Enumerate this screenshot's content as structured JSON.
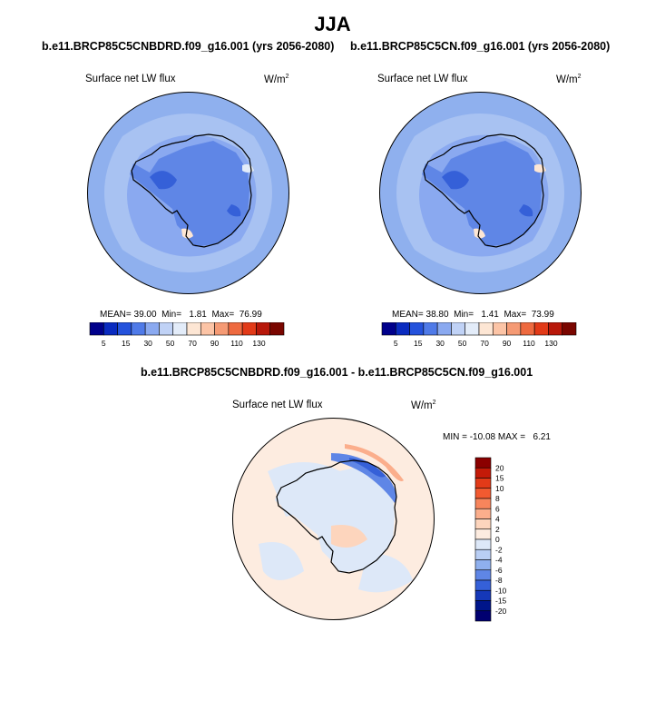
{
  "main_title": "JJA",
  "panels": [
    {
      "case": "b.e11.BRCP85C5CNBDRD.f09_g16.001 (yrs 2056-2080)",
      "variable": "Surface net LW flux",
      "units": "W/m",
      "units_exp": "2",
      "stats": {
        "mean_label": "MEAN=",
        "mean": "39.00",
        "min_label": "Min=",
        "min": "1.81",
        "max_label": "Max=",
        "max": "76.99"
      }
    },
    {
      "case": "b.e11.BRCP85C5CN.f09_g16.001 (yrs 2056-2080)",
      "variable": "Surface net LW flux",
      "units": "W/m",
      "units_exp": "2",
      "stats": {
        "mean_label": "MEAN=",
        "mean": "38.80",
        "min_label": "Min=",
        "min": "1.41",
        "max_label": "Max=",
        "max": "73.99"
      }
    }
  ],
  "diff_panel": {
    "title": "b.e11.BRCP85C5CNBDRD.f09_g16.001 - b.e11.BRCP85C5CN.f09_g16.001",
    "variable": "Surface net LW flux",
    "units": "W/m",
    "units_exp": "2",
    "minmax_label": "MIN = -10.08 MAX =   6.21"
  },
  "chart_data": [
    {
      "type": "heatmap",
      "projection": "south-polar-stereographic",
      "title": "b.e11.BRCP85C5CNBDRD.f09_g16.001 (yrs 2056-2080)",
      "variable": "Surface net LW flux",
      "units": "W/m2",
      "stats": {
        "mean": 39.0,
        "min": 1.81,
        "max": 76.99
      },
      "colorbar": {
        "levels": [
          5,
          15,
          30,
          50,
          70,
          90,
          110,
          130
        ],
        "tick_labels": [
          "5",
          "15",
          "30",
          "50",
          "70",
          "90",
          "110",
          "130"
        ],
        "colors": [
          "#00008b",
          "#0a2bc0",
          "#2452dc",
          "#4f7ae8",
          "#8aa9f0",
          "#c0d2f6",
          "#e3ecf9",
          "#fde6d4",
          "#fcc4a6",
          "#f59a74",
          "#ee6a40",
          "#e23a18",
          "#b8180a",
          "#7a0600"
        ]
      }
    },
    {
      "type": "heatmap",
      "projection": "south-polar-stereographic",
      "title": "b.e11.BRCP85C5CN.f09_g16.001 (yrs 2056-2080)",
      "variable": "Surface net LW flux",
      "units": "W/m2",
      "stats": {
        "mean": 38.8,
        "min": 1.41,
        "max": 73.99
      },
      "colorbar": {
        "levels": [
          5,
          15,
          30,
          50,
          70,
          90,
          110,
          130
        ],
        "tick_labels": [
          "5",
          "15",
          "30",
          "50",
          "70",
          "90",
          "110",
          "130"
        ],
        "colors": [
          "#00008b",
          "#0a2bc0",
          "#2452dc",
          "#4f7ae8",
          "#8aa9f0",
          "#c0d2f6",
          "#e3ecf9",
          "#fde6d4",
          "#fcc4a6",
          "#f59a74",
          "#ee6a40",
          "#e23a18",
          "#b8180a",
          "#7a0600"
        ]
      }
    },
    {
      "type": "heatmap",
      "projection": "south-polar-stereographic",
      "title": "b.e11.BRCP85C5CNBDRD.f09_g16.001 - b.e11.BRCP85C5CN.f09_g16.001",
      "variable": "Surface net LW flux",
      "units": "W/m2",
      "stats": {
        "min": -10.08,
        "max": 6.21
      },
      "colorbar": {
        "orientation": "vertical",
        "tick_labels": [
          "20",
          "15",
          "10",
          "8",
          "6",
          "4",
          "2",
          "0",
          "-2",
          "-4",
          "-6",
          "-8",
          "-10",
          "-15",
          "-20"
        ],
        "colors": [
          "#8b0000",
          "#c41a08",
          "#e23a18",
          "#f25a30",
          "#f7855c",
          "#fbae8c",
          "#fdd5bd",
          "#fdece0",
          "#dde8f8",
          "#b9cef4",
          "#8fb0ee",
          "#5f86e6",
          "#3560d8",
          "#1538b8",
          "#00158a",
          "#000070"
        ]
      }
    }
  ]
}
